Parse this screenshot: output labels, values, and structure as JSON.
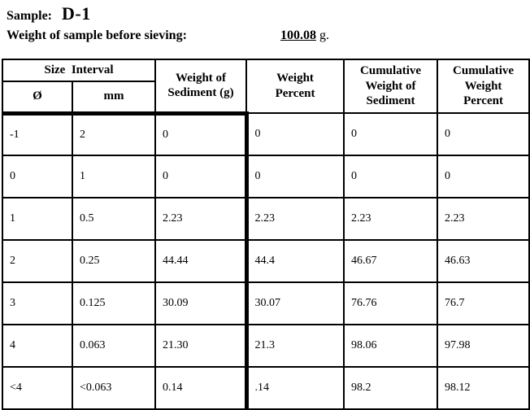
{
  "colors": {
    "text": "#000000",
    "background": "#ffffff",
    "border": "#000000"
  },
  "header": {
    "sample_label": "Sample:",
    "sample_value": "D-1",
    "weight_label": "Weight of sample before sieving:",
    "weight_value": "100.08",
    "weight_unit": "g."
  },
  "table": {
    "header": {
      "size_interval": "Size  Interval",
      "phi": "Ø",
      "mm": "mm",
      "weight_of_sediment": "Weight of\nSediment (g)",
      "weight_percent": "Weight\nPercent",
      "cumulative_weight_of_sediment": "Cumulative\nWeight of\nSediment",
      "cumulative_weight_percent": "Cumulative\nWeight\nPercent"
    },
    "rows": [
      [
        "-1",
        "2",
        "0",
        "0",
        "0",
        "0"
      ],
      [
        "0",
        "1",
        "0",
        "0",
        "0",
        "0"
      ],
      [
        "1",
        "0.5",
        "2.23",
        "2.23",
        "2.23",
        "2.23"
      ],
      [
        "2",
        "0.25",
        "44.44",
        "44.4",
        "46.67",
        "46.63"
      ],
      [
        "3",
        "0.125",
        "30.09",
        "30.07",
        "76.76",
        "76.7"
      ],
      [
        "4",
        "0.063",
        "21.30",
        "21.3",
        "98.06",
        "97.98"
      ],
      [
        "<4",
        "<0.063",
        "0.14",
        ".14",
        "98.2",
        "98.12"
      ]
    ]
  }
}
